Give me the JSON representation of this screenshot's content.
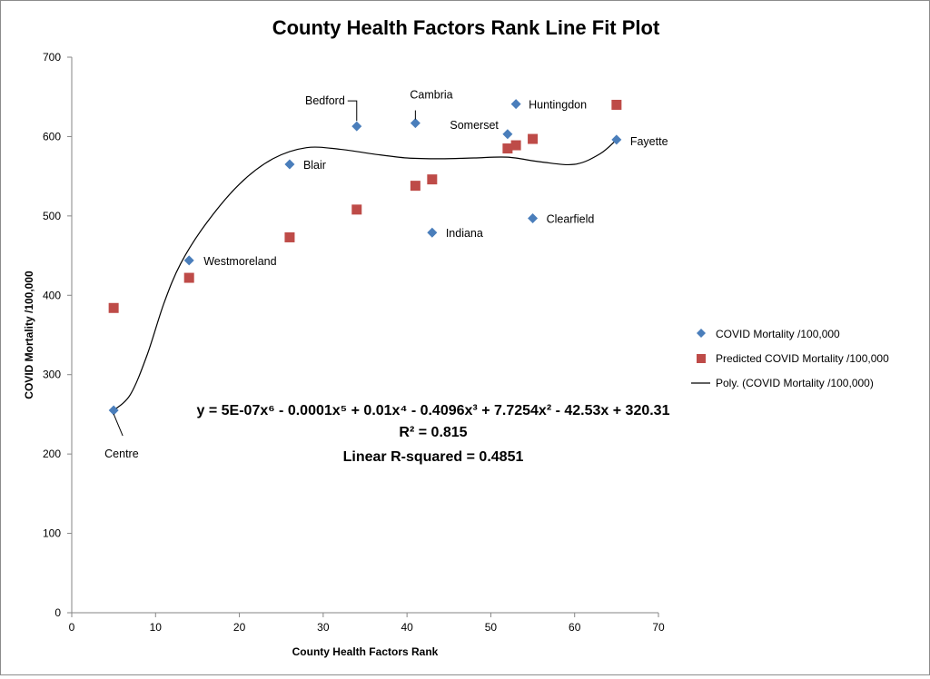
{
  "chart_data": {
    "type": "scatter",
    "title": "County Health Factors Rank Line Fit  Plot",
    "xlabel": "County Health Factors Rank",
    "ylabel": "COVID Mortality /100,000",
    "xlim": [
      0,
      70
    ],
    "ylim": [
      0,
      700
    ],
    "xticks": [
      0,
      10,
      20,
      30,
      40,
      50,
      60,
      70
    ],
    "yticks": [
      0,
      100,
      200,
      300,
      400,
      500,
      600,
      700
    ],
    "grid": false,
    "legend_position": "right",
    "series": [
      {
        "name": "COVID Mortality /100,000",
        "marker": "diamond",
        "color": "#4a7ebb",
        "points": [
          {
            "x": 5,
            "y": 255,
            "label": "Centre"
          },
          {
            "x": 14,
            "y": 444,
            "label": "Westmoreland"
          },
          {
            "x": 26,
            "y": 565,
            "label": "Blair"
          },
          {
            "x": 34,
            "y": 613,
            "label": "Bedford"
          },
          {
            "x": 41,
            "y": 617,
            "label": "Cambria"
          },
          {
            "x": 43,
            "y": 479,
            "label": "Indiana"
          },
          {
            "x": 52,
            "y": 603,
            "label": "Somerset"
          },
          {
            "x": 53,
            "y": 641,
            "label": "Huntingdon"
          },
          {
            "x": 55,
            "y": 497,
            "label": "Clearfield"
          },
          {
            "x": 65,
            "y": 596,
            "label": "Fayette"
          }
        ]
      },
      {
        "name": "Predicted COVID Mortality /100,000",
        "marker": "square",
        "color": "#be4b48",
        "points": [
          {
            "x": 5,
            "y": 384
          },
          {
            "x": 14,
            "y": 422
          },
          {
            "x": 26,
            "y": 473
          },
          {
            "x": 34,
            "y": 508
          },
          {
            "x": 41,
            "y": 538
          },
          {
            "x": 43,
            "y": 546
          },
          {
            "x": 52,
            "y": 585
          },
          {
            "x": 53,
            "y": 589
          },
          {
            "x": 55,
            "y": 597
          },
          {
            "x": 65,
            "y": 640
          }
        ]
      },
      {
        "name": "Poly. (COVID Mortality /100,000)",
        "type": "line",
        "color": "#000000",
        "points": [
          {
            "x": 5,
            "y": 255
          },
          {
            "x": 7,
            "y": 275
          },
          {
            "x": 9,
            "y": 325
          },
          {
            "x": 11,
            "y": 390
          },
          {
            "x": 13,
            "y": 440
          },
          {
            "x": 16,
            "y": 490
          },
          {
            "x": 20,
            "y": 540
          },
          {
            "x": 24,
            "y": 572
          },
          {
            "x": 28,
            "y": 586
          },
          {
            "x": 32,
            "y": 584
          },
          {
            "x": 36,
            "y": 578
          },
          {
            "x": 40,
            "y": 573
          },
          {
            "x": 44,
            "y": 572
          },
          {
            "x": 48,
            "y": 573
          },
          {
            "x": 52,
            "y": 574
          },
          {
            "x": 56,
            "y": 568
          },
          {
            "x": 60,
            "y": 565
          },
          {
            "x": 63,
            "y": 578
          },
          {
            "x": 65,
            "y": 596
          }
        ]
      }
    ],
    "annotations": {
      "equation": "y = 5E-07x⁶ - 0.0001x⁵ + 0.01x⁴ - 0.4096x³ + 7.7254x² - 42.53x + 320.31",
      "r_squared": "R² = 0.815",
      "linear_r_squared": "Linear R-squared = 0.4851"
    }
  }
}
